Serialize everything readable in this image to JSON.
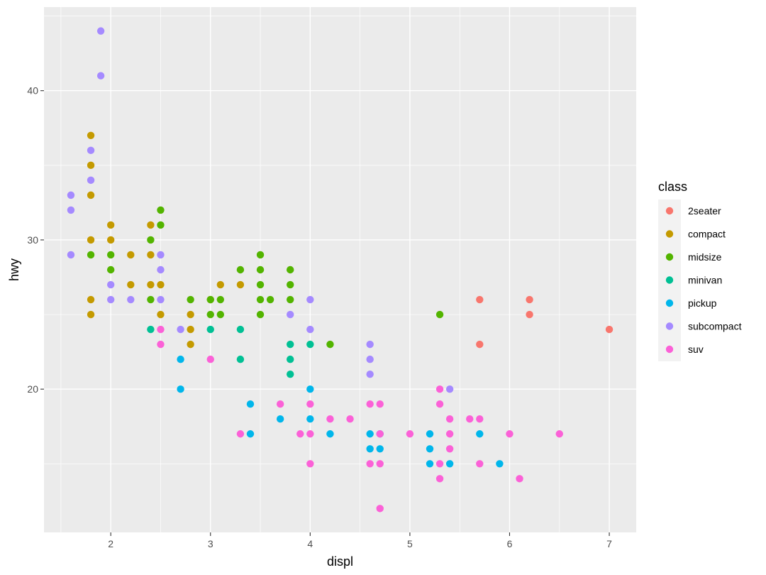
{
  "chart_data": {
    "type": "scatter",
    "title": "",
    "xlabel": "displ",
    "ylabel": "hwy",
    "xlim": [
      1.33,
      7.27
    ],
    "ylim": [
      10.4,
      45.6
    ],
    "x_ticks": [
      2,
      3,
      4,
      5,
      6,
      7
    ],
    "y_ticks": [
      20,
      30,
      40
    ],
    "x_tick_labels": [
      "2",
      "3",
      "4",
      "5",
      "6",
      "7"
    ],
    "y_tick_labels": [
      "20",
      "30",
      "40"
    ],
    "grid": true,
    "legend": {
      "title": "class",
      "placement": "right"
    },
    "series": [
      {
        "name": "2seater",
        "color": "#F8766D",
        "points": [
          [
            5.7,
            26
          ],
          [
            5.7,
            23
          ],
          [
            6.2,
            26
          ],
          [
            6.2,
            25
          ],
          [
            7.0,
            24
          ]
        ]
      },
      {
        "name": "compact",
        "color": "#C49A00",
        "points": [
          [
            1.8,
            37
          ],
          [
            1.8,
            35
          ],
          [
            1.8,
            33
          ],
          [
            1.8,
            30
          ],
          [
            1.8,
            26
          ],
          [
            1.8,
            25
          ],
          [
            2.0,
            31
          ],
          [
            2.0,
            30
          ],
          [
            2.2,
            29
          ],
          [
            2.2,
            27
          ],
          [
            2.4,
            31
          ],
          [
            2.4,
            29
          ],
          [
            2.4,
            27
          ],
          [
            2.5,
            27
          ],
          [
            2.5,
            25
          ],
          [
            2.8,
            25
          ],
          [
            2.8,
            24
          ],
          [
            2.8,
            23
          ],
          [
            3.0,
            26
          ],
          [
            3.1,
            27
          ],
          [
            3.3,
            27
          ]
        ]
      },
      {
        "name": "midsize",
        "color": "#53B400",
        "points": [
          [
            1.8,
            29
          ],
          [
            2.0,
            29
          ],
          [
            2.0,
            28
          ],
          [
            2.4,
            30
          ],
          [
            2.4,
            26
          ],
          [
            2.5,
            32
          ],
          [
            2.5,
            31
          ],
          [
            2.8,
            26
          ],
          [
            3.0,
            26
          ],
          [
            3.0,
            25
          ],
          [
            3.1,
            26
          ],
          [
            3.1,
            25
          ],
          [
            3.3,
            28
          ],
          [
            3.5,
            29
          ],
          [
            3.5,
            28
          ],
          [
            3.5,
            27
          ],
          [
            3.5,
            26
          ],
          [
            3.5,
            25
          ],
          [
            3.6,
            26
          ],
          [
            3.8,
            28
          ],
          [
            3.8,
            27
          ],
          [
            3.8,
            26
          ],
          [
            4.2,
            23
          ],
          [
            5.3,
            25
          ]
        ]
      },
      {
        "name": "minivan",
        "color": "#00C094",
        "points": [
          [
            2.4,
            24
          ],
          [
            3.0,
            24
          ],
          [
            3.3,
            24
          ],
          [
            3.3,
            22
          ],
          [
            3.8,
            23
          ],
          [
            3.8,
            22
          ],
          [
            3.8,
            21
          ],
          [
            4.0,
            23
          ]
        ]
      },
      {
        "name": "pickup",
        "color": "#00B6EB",
        "points": [
          [
            2.7,
            22
          ],
          [
            2.7,
            20
          ],
          [
            3.4,
            19
          ],
          [
            3.4,
            17
          ],
          [
            3.7,
            18
          ],
          [
            4.0,
            20
          ],
          [
            4.0,
            18
          ],
          [
            4.2,
            17
          ],
          [
            4.6,
            17
          ],
          [
            4.6,
            16
          ],
          [
            4.7,
            17
          ],
          [
            4.7,
            16
          ],
          [
            5.2,
            17
          ],
          [
            5.2,
            16
          ],
          [
            5.2,
            15
          ],
          [
            5.4,
            15
          ],
          [
            5.7,
            17
          ],
          [
            5.9,
            15
          ]
        ]
      },
      {
        "name": "subcompact",
        "color": "#A58AFF",
        "points": [
          [
            1.6,
            33
          ],
          [
            1.6,
            32
          ],
          [
            1.6,
            29
          ],
          [
            1.8,
            36
          ],
          [
            1.8,
            34
          ],
          [
            1.9,
            44
          ],
          [
            1.9,
            41
          ],
          [
            2.0,
            27
          ],
          [
            2.0,
            26
          ],
          [
            2.2,
            26
          ],
          [
            2.5,
            29
          ],
          [
            2.5,
            28
          ],
          [
            2.5,
            26
          ],
          [
            2.7,
            24
          ],
          [
            3.8,
            25
          ],
          [
            4.0,
            26
          ],
          [
            4.0,
            24
          ],
          [
            4.6,
            23
          ],
          [
            4.6,
            22
          ],
          [
            4.6,
            21
          ],
          [
            5.4,
            20
          ]
        ]
      },
      {
        "name": "suv",
        "color": "#FB61D7",
        "points": [
          [
            2.5,
            24
          ],
          [
            2.5,
            23
          ],
          [
            3.0,
            22
          ],
          [
            3.3,
            17
          ],
          [
            3.7,
            19
          ],
          [
            3.9,
            17
          ],
          [
            4.0,
            19
          ],
          [
            4.0,
            17
          ],
          [
            4.0,
            15
          ],
          [
            4.2,
            18
          ],
          [
            4.4,
            18
          ],
          [
            4.6,
            19
          ],
          [
            4.6,
            15
          ],
          [
            4.7,
            19
          ],
          [
            4.7,
            17
          ],
          [
            4.7,
            15
          ],
          [
            4.7,
            12
          ],
          [
            5.0,
            17
          ],
          [
            5.3,
            20
          ],
          [
            5.3,
            19
          ],
          [
            5.3,
            15
          ],
          [
            5.3,
            14
          ],
          [
            5.4,
            18
          ],
          [
            5.4,
            17
          ],
          [
            5.4,
            16
          ],
          [
            5.6,
            18
          ],
          [
            5.7,
            18
          ],
          [
            5.7,
            15
          ],
          [
            6.0,
            17
          ],
          [
            6.1,
            14
          ],
          [
            6.5,
            17
          ]
        ]
      }
    ]
  }
}
